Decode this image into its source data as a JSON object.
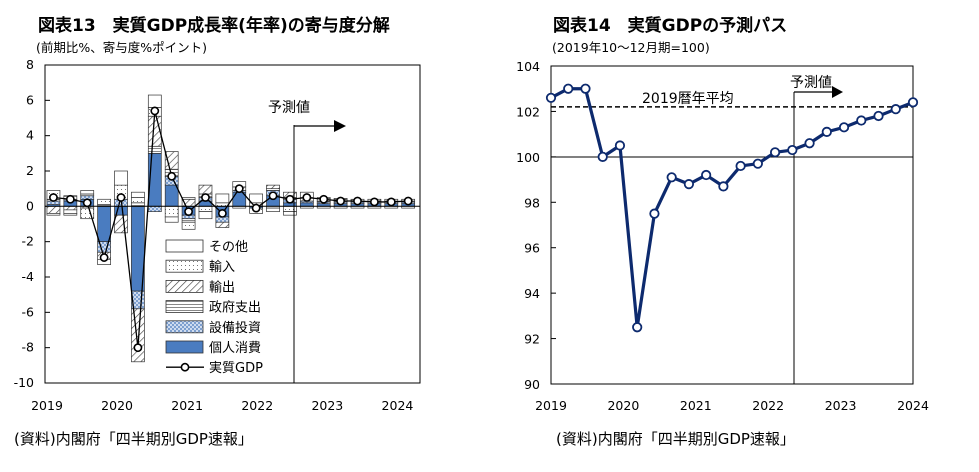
{
  "colors": {
    "consumption": "#4a7cc0",
    "gdp_line": "#0d2a6e",
    "axis": "#000000"
  },
  "left": {
    "title": "図表13　実質GDP成長率(年率)の寄与度分解",
    "subtitle": "(前期比%、寄与度%ポイント)",
    "forecast_label": "予測値",
    "source": "(資料)内閣府「四半期別GDP速報」",
    "legend": [
      "その他",
      "輸入",
      "輸出",
      "政府支出",
      "設備投資",
      "個人消費",
      "実質GDP"
    ],
    "y_ticks": [
      "8",
      "6",
      "4",
      "2",
      "0",
      "-2",
      "-4",
      "-6",
      "-8",
      "-10"
    ],
    "x_ticks": [
      "2019",
      "2020",
      "2021",
      "2022",
      "2023",
      "2024"
    ]
  },
  "right": {
    "title": "図表14　実質GDPの予測パス",
    "subtitle": "(2019年10～12月期=100)",
    "forecast_label": "予測値",
    "avg_label": "2019暦年平均",
    "source": "(資料)内閣府「四半期別GDP速報」",
    "y_ticks": [
      "104",
      "102",
      "100",
      "98",
      "96",
      "94",
      "92",
      "90"
    ],
    "x_ticks": [
      "2019",
      "2020",
      "2021",
      "2022",
      "2023",
      "2024"
    ]
  },
  "chart_data": [
    {
      "type": "bar",
      "title": "図表13　実質GDP成長率(年率)の寄与度分解",
      "ylabel": "(前期比%、寄与度%ポイント)",
      "ylim": [
        -10,
        8
      ],
      "categories": [
        "2019Q1",
        "2019Q2",
        "2019Q3",
        "2019Q4",
        "2020Q1",
        "2020Q2",
        "2020Q3",
        "2020Q4",
        "2021Q1",
        "2021Q2",
        "2021Q3",
        "2021Q4",
        "2022Q1",
        "2022Q2",
        "2022Q3",
        "2022Q4",
        "2023Q1",
        "2023Q2",
        "2023Q3",
        "2023Q4",
        "2024Q1",
        "2024Q2"
      ],
      "forecast_start": "2022Q3",
      "series": [
        {
          "name": "個人消費",
          "values": [
            0.1,
            0.3,
            0.4,
            -2.0,
            -0.5,
            -4.8,
            3.0,
            1.2,
            -0.5,
            0.3,
            -0.6,
            0.8,
            -0.1,
            0.6,
            0.2,
            0.2,
            0.15,
            0.15,
            0.15,
            0.15,
            0.15,
            0.15
          ]
        },
        {
          "name": "設備投資",
          "values": [
            0.2,
            0.1,
            0.2,
            -0.6,
            0.4,
            -1.0,
            -0.3,
            0.5,
            -0.2,
            0.2,
            -0.3,
            0.1,
            0.0,
            0.3,
            0.2,
            0.1,
            0.1,
            0.1,
            0.1,
            0.1,
            0.1,
            0.1
          ]
        },
        {
          "name": "政府支出",
          "values": [
            0.1,
            0.2,
            0.1,
            0.1,
            0.0,
            0.2,
            0.4,
            0.4,
            -0.2,
            0.2,
            0.0,
            -0.1,
            0.0,
            0.1,
            0.1,
            0.0,
            0.05,
            0.05,
            0.05,
            0.05,
            0.05,
            0.05
          ]
        },
        {
          "name": "輸出",
          "values": [
            -0.4,
            -0.2,
            -0.1,
            -0.4,
            -1.0,
            -3.0,
            1.7,
            1.0,
            0.4,
            0.5,
            -0.3,
            0.2,
            0.2,
            0.2,
            0.3,
            0.2,
            0.15,
            0.1,
            0.1,
            0.1,
            0.1,
            0.1
          ]
        },
        {
          "name": "輸入",
          "values": [
            0.5,
            -0.2,
            -0.6,
            0.3,
            0.8,
            0.3,
            0.5,
            -0.6,
            -0.4,
            -0.3,
            0.2,
            0.0,
            -0.3,
            -0.1,
            -0.3,
            -0.1,
            -0.1,
            -0.1,
            -0.1,
            -0.1,
            -0.1,
            -0.1
          ]
        },
        {
          "name": "その他",
          "values": [
            -0.1,
            -0.1,
            0.2,
            -0.3,
            0.8,
            0.3,
            0.7,
            -0.3,
            0.1,
            -0.4,
            0.5,
            0.3,
            0.5,
            -0.2,
            -0.2,
            0.3,
            0.05,
            0.05,
            0.0,
            0.0,
            0.0,
            0.0
          ]
        }
      ],
      "line": {
        "name": "実質GDP",
        "values": [
          0.5,
          0.4,
          0.2,
          -2.9,
          0.5,
          -8.0,
          5.4,
          1.7,
          -0.3,
          0.5,
          -0.4,
          1.0,
          -0.1,
          0.6,
          0.4,
          0.5,
          0.4,
          0.3,
          0.3,
          0.25,
          0.25,
          0.3
        ]
      }
    },
    {
      "type": "line",
      "title": "図表14　実質GDPの予測パス",
      "ylabel": "(2019年10～12月期=100)",
      "ylim": [
        90,
        104
      ],
      "x": [
        "2019Q1",
        "2019Q2",
        "2019Q3",
        "2019Q4",
        "2020Q1",
        "2020Q2",
        "2020Q3",
        "2020Q4",
        "2021Q1",
        "2021Q2",
        "2021Q3",
        "2021Q4",
        "2022Q1",
        "2022Q2",
        "2022Q3",
        "2022Q4",
        "2023Q1",
        "2023Q2",
        "2023Q3",
        "2023Q4",
        "2024Q1",
        "2024Q2"
      ],
      "forecast_start": "2022Q3",
      "reference": {
        "name": "2019暦年平均",
        "value": 102.2
      },
      "series": [
        {
          "name": "実質GDP",
          "values": [
            102.6,
            103.0,
            103.0,
            100.0,
            100.5,
            92.5,
            97.5,
            99.1,
            98.8,
            99.2,
            98.7,
            99.6,
            99.7,
            100.2,
            100.3,
            100.6,
            101.1,
            101.3,
            101.6,
            101.8,
            102.1,
            102.4
          ]
        }
      ]
    }
  ]
}
